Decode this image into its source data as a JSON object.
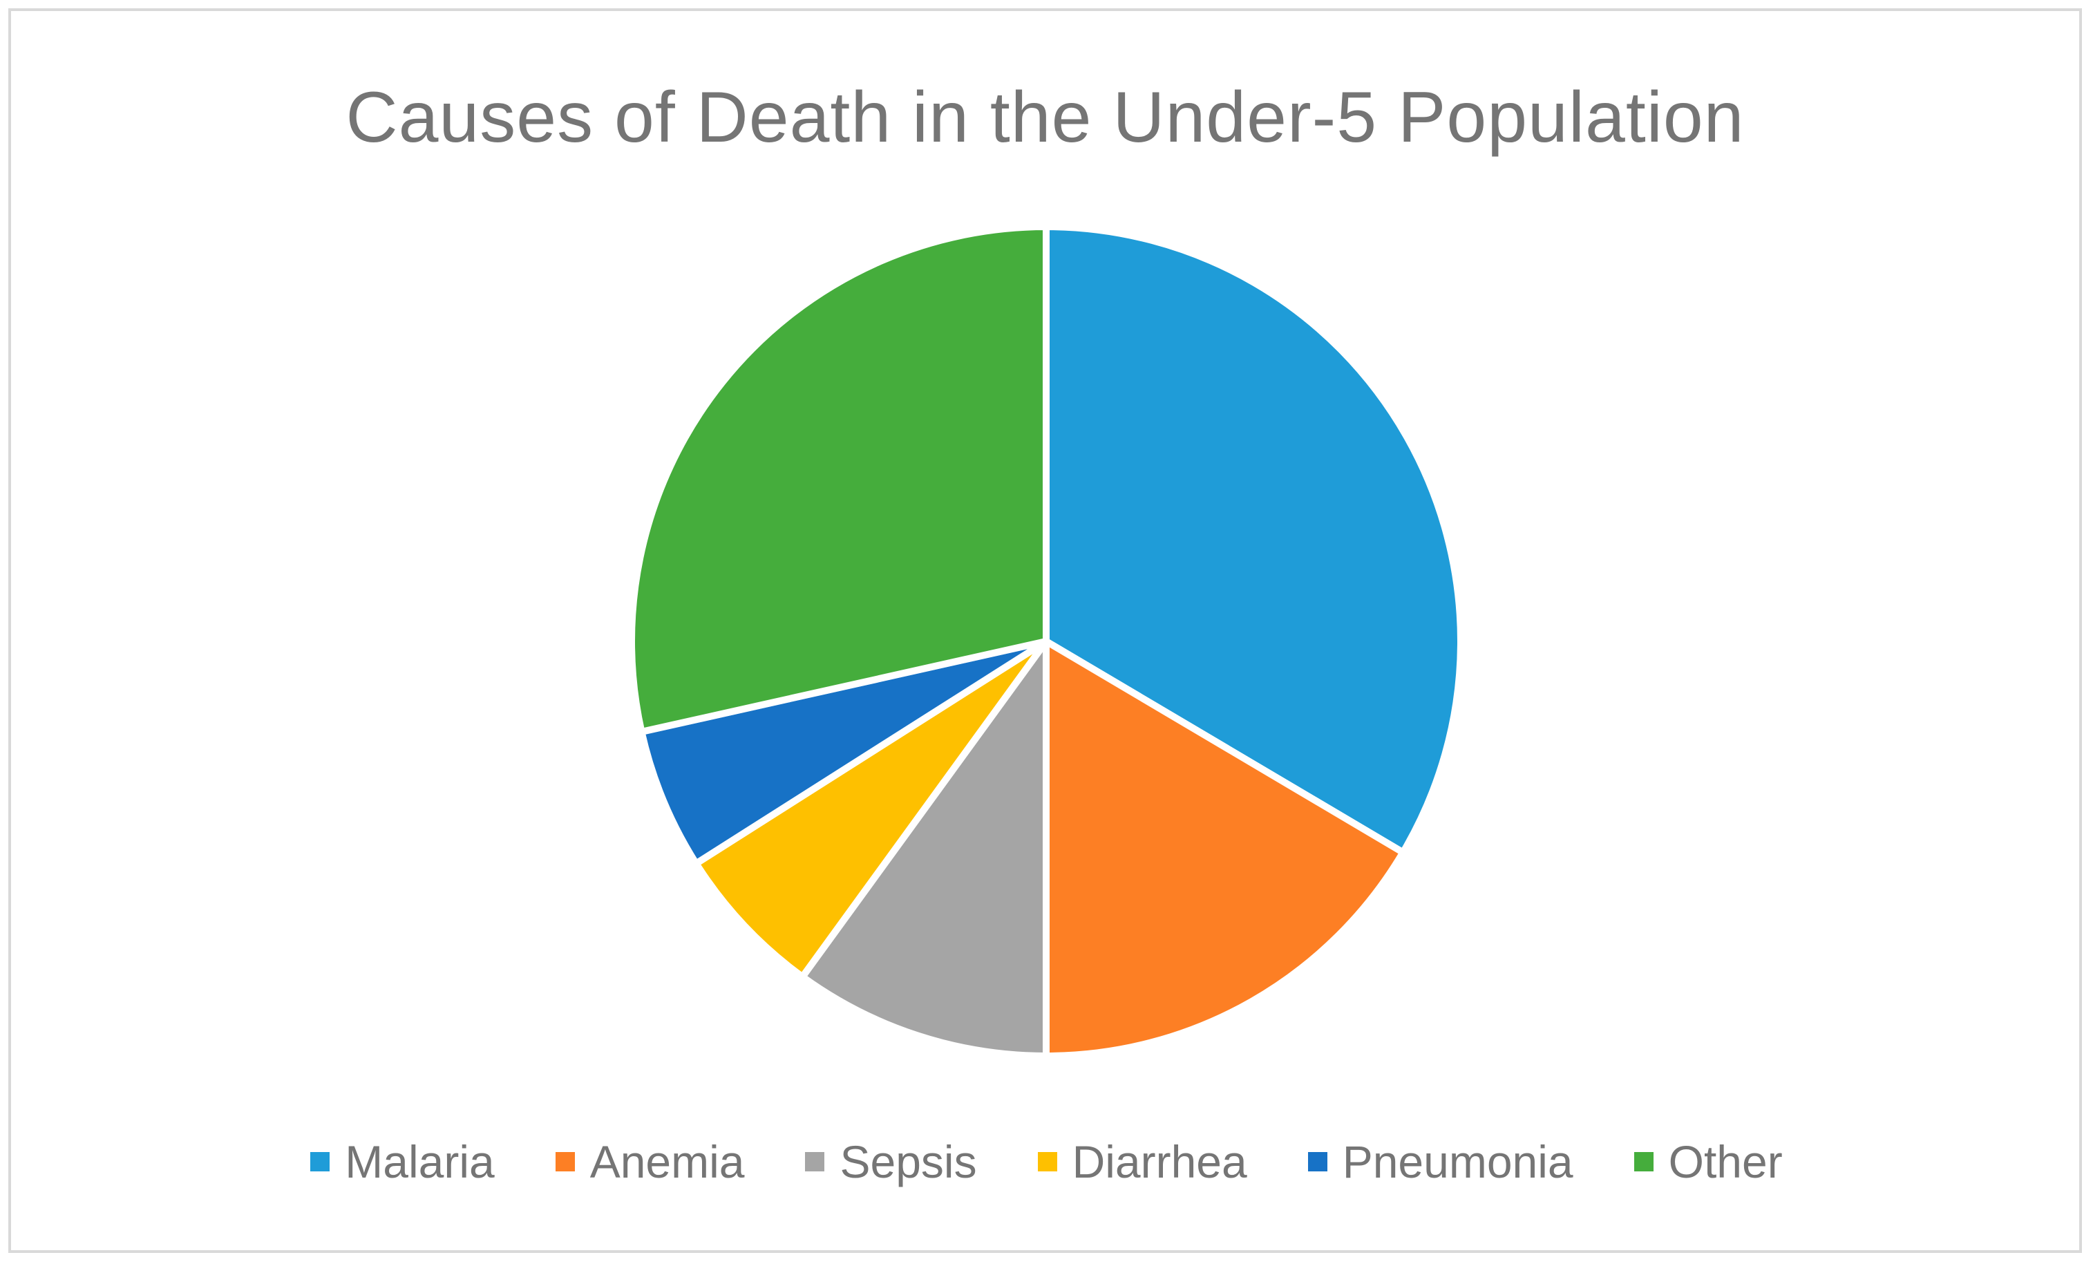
{
  "chart_data": {
    "type": "pie",
    "title": "Causes of Death in the Under-5 Population",
    "categories": [
      "Malaria",
      "Anemia",
      "Sepsis",
      "Diarrhea",
      "Pneumonia",
      "Other"
    ],
    "values": [
      33.5,
      16.5,
      10,
      6,
      5.5,
      28.5
    ],
    "unit": "%",
    "colors": [
      "#1f9cd8",
      "#fd7f24",
      "#a5a5a5",
      "#fec000",
      "#1772c6",
      "#45ad3c"
    ],
    "start_angle_deg": 0,
    "direction": "clockwise",
    "slice_border_color": "#ffffff",
    "legend": "bottom"
  }
}
